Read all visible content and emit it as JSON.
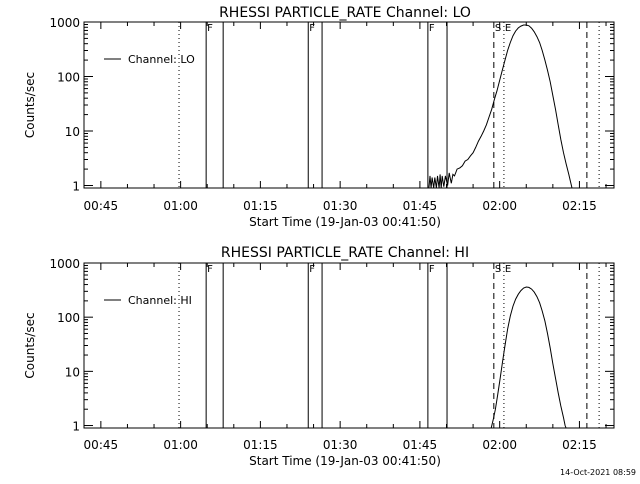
{
  "footer": {
    "timestamp": "14-Oct-2021 08:59"
  },
  "chart_data": [
    {
      "type": "line",
      "title": "RHESSI PARTICLE_RATE Channel: LO",
      "xlabel": "Start Time (19-Jan-03 00:41:50)",
      "ylabel": "Counts/sec",
      "yscale": "log",
      "ylim": [
        0.9,
        1000
      ],
      "xlim_minutes": [
        41.83,
        141.5
      ],
      "x_ticks": [
        {
          "min": 45,
          "label": "00:45"
        },
        {
          "min": 60,
          "label": "01:00"
        },
        {
          "min": 75,
          "label": "01:15"
        },
        {
          "min": 90,
          "label": "01:30"
        },
        {
          "min": 105,
          "label": "01:45"
        },
        {
          "min": 120,
          "label": "02:00"
        },
        {
          "min": 135,
          "label": "02:15"
        }
      ],
      "y_ticks": [
        {
          "value": 1,
          "label": "1"
        },
        {
          "value": 10,
          "label": "10"
        },
        {
          "value": 100,
          "label": "100"
        },
        {
          "value": 1000,
          "label": "1000"
        }
      ],
      "legend": {
        "position": "top-left",
        "label": "Channel: LO"
      },
      "markers": [
        {
          "min": 59.7,
          "style": "dotted",
          "label": ""
        },
        {
          "min": 64.8,
          "style": "solid",
          "label": "F"
        },
        {
          "min": 68.0,
          "style": "solid",
          "label": ""
        },
        {
          "min": 84.0,
          "style": "solid",
          "label": "F"
        },
        {
          "min": 86.6,
          "style": "solid",
          "label": ""
        },
        {
          "min": 106.5,
          "style": "solid",
          "label": "F"
        },
        {
          "min": 110.1,
          "style": "solid",
          "label": ""
        },
        {
          "min": 118.9,
          "style": "dashed",
          "label": "S"
        },
        {
          "min": 120.8,
          "style": "dotted",
          "label": "E"
        },
        {
          "min": 136.4,
          "style": "dashed",
          "label": ""
        },
        {
          "min": 138.7,
          "style": "dotted",
          "label": ""
        }
      ],
      "series": [
        {
          "name": "Channel: LO",
          "points": [
            [
              106.7,
              0.9
            ],
            [
              106.9,
              1.5
            ],
            [
              107.1,
              0.9
            ],
            [
              107.3,
              1.4
            ],
            [
              107.6,
              0.9
            ],
            [
              107.8,
              1.4
            ],
            [
              108.1,
              0.9
            ],
            [
              108.3,
              1.5
            ],
            [
              108.6,
              0.9
            ],
            [
              108.8,
              1.6
            ],
            [
              109.0,
              0.9
            ],
            [
              109.2,
              1.5
            ],
            [
              109.5,
              0.95
            ],
            [
              109.8,
              1.5
            ],
            [
              110.2,
              1.0
            ],
            [
              110.5,
              1.7
            ],
            [
              110.9,
              1.1
            ],
            [
              111.2,
              1.6
            ],
            [
              111.5,
              1.5
            ],
            [
              112.0,
              2.0
            ],
            [
              112.5,
              2.1
            ],
            [
              113.0,
              2.3
            ],
            [
              113.5,
              2.8
            ],
            [
              114.0,
              3.0
            ],
            [
              114.5,
              3.5
            ],
            [
              115.0,
              4.0
            ],
            [
              115.5,
              5.0
            ],
            [
              116.0,
              6.5
            ],
            [
              116.5,
              8.0
            ],
            [
              117.0,
              10
            ],
            [
              117.5,
              13
            ],
            [
              118.0,
              18
            ],
            [
              118.5,
              25
            ],
            [
              119.0,
              38
            ],
            [
              119.5,
              55
            ],
            [
              120.0,
              85
            ],
            [
              120.5,
              130
            ],
            [
              121.0,
              200
            ],
            [
              121.5,
              300
            ],
            [
              122.0,
              420
            ],
            [
              122.5,
              560
            ],
            [
              123.0,
              680
            ],
            [
              123.5,
              780
            ],
            [
              124.0,
              840
            ],
            [
              124.5,
              880
            ],
            [
              125.0,
              880
            ],
            [
              125.5,
              850
            ],
            [
              126.0,
              770
            ],
            [
              126.5,
              660
            ],
            [
              127.0,
              540
            ],
            [
              127.5,
              420
            ],
            [
              128.0,
              300
            ],
            [
              128.5,
              200
            ],
            [
              129.0,
              130
            ],
            [
              129.5,
              80
            ],
            [
              130.0,
              45
            ],
            [
              130.5,
              25
            ],
            [
              131.0,
              13
            ],
            [
              131.5,
              7
            ],
            [
              132.0,
              4
            ],
            [
              132.5,
              2.5
            ],
            [
              133.0,
              1.6
            ],
            [
              133.3,
              1.2
            ],
            [
              133.6,
              0.9
            ]
          ]
        }
      ]
    },
    {
      "type": "line",
      "title": "RHESSI PARTICLE_RATE Channel: HI",
      "xlabel": "Start Time (19-Jan-03 00:41:50)",
      "ylabel": "Counts/sec",
      "yscale": "log",
      "ylim": [
        0.9,
        1000
      ],
      "xlim_minutes": [
        41.83,
        141.5
      ],
      "x_ticks": [
        {
          "min": 45,
          "label": "00:45"
        },
        {
          "min": 60,
          "label": "01:00"
        },
        {
          "min": 75,
          "label": "01:15"
        },
        {
          "min": 90,
          "label": "01:30"
        },
        {
          "min": 105,
          "label": "01:45"
        },
        {
          "min": 120,
          "label": "02:00"
        },
        {
          "min": 135,
          "label": "02:15"
        }
      ],
      "y_ticks": [
        {
          "value": 1,
          "label": "1"
        },
        {
          "value": 10,
          "label": "10"
        },
        {
          "value": 100,
          "label": "100"
        },
        {
          "value": 1000,
          "label": "1000"
        }
      ],
      "legend": {
        "position": "top-left",
        "label": "Channel: HI"
      },
      "markers": [
        {
          "min": 59.7,
          "style": "dotted",
          "label": ""
        },
        {
          "min": 64.8,
          "style": "solid",
          "label": "F"
        },
        {
          "min": 68.0,
          "style": "solid",
          "label": ""
        },
        {
          "min": 84.0,
          "style": "solid",
          "label": "F"
        },
        {
          "min": 86.6,
          "style": "solid",
          "label": ""
        },
        {
          "min": 106.5,
          "style": "solid",
          "label": "F"
        },
        {
          "min": 110.1,
          "style": "solid",
          "label": ""
        },
        {
          "min": 118.9,
          "style": "dashed",
          "label": "S"
        },
        {
          "min": 120.8,
          "style": "dotted",
          "label": "E"
        },
        {
          "min": 136.4,
          "style": "dashed",
          "label": ""
        },
        {
          "min": 138.7,
          "style": "dotted",
          "label": ""
        }
      ],
      "series": [
        {
          "name": "Channel: HI",
          "points": [
            [
              118.4,
              0.9
            ],
            [
              118.8,
              1.3
            ],
            [
              119.2,
              2.0
            ],
            [
              119.6,
              3.5
            ],
            [
              120.0,
              6.5
            ],
            [
              120.5,
              14
            ],
            [
              121.0,
              30
            ],
            [
              121.5,
              60
            ],
            [
              122.0,
              105
            ],
            [
              122.5,
              160
            ],
            [
              123.0,
              215
            ],
            [
              123.5,
              265
            ],
            [
              124.0,
              310
            ],
            [
              124.5,
              345
            ],
            [
              125.0,
              360
            ],
            [
              125.5,
              355
            ],
            [
              126.0,
              330
            ],
            [
              126.5,
              290
            ],
            [
              127.0,
              240
            ],
            [
              127.5,
              185
            ],
            [
              128.0,
              130
            ],
            [
              128.5,
              85
            ],
            [
              129.0,
              50
            ],
            [
              129.5,
              27
            ],
            [
              130.0,
              14
            ],
            [
              130.5,
              7.5
            ],
            [
              131.0,
              4.0
            ],
            [
              131.5,
              2.3
            ],
            [
              132.0,
              1.4
            ],
            [
              132.3,
              1.0
            ],
            [
              132.5,
              0.9
            ]
          ]
        }
      ]
    }
  ]
}
